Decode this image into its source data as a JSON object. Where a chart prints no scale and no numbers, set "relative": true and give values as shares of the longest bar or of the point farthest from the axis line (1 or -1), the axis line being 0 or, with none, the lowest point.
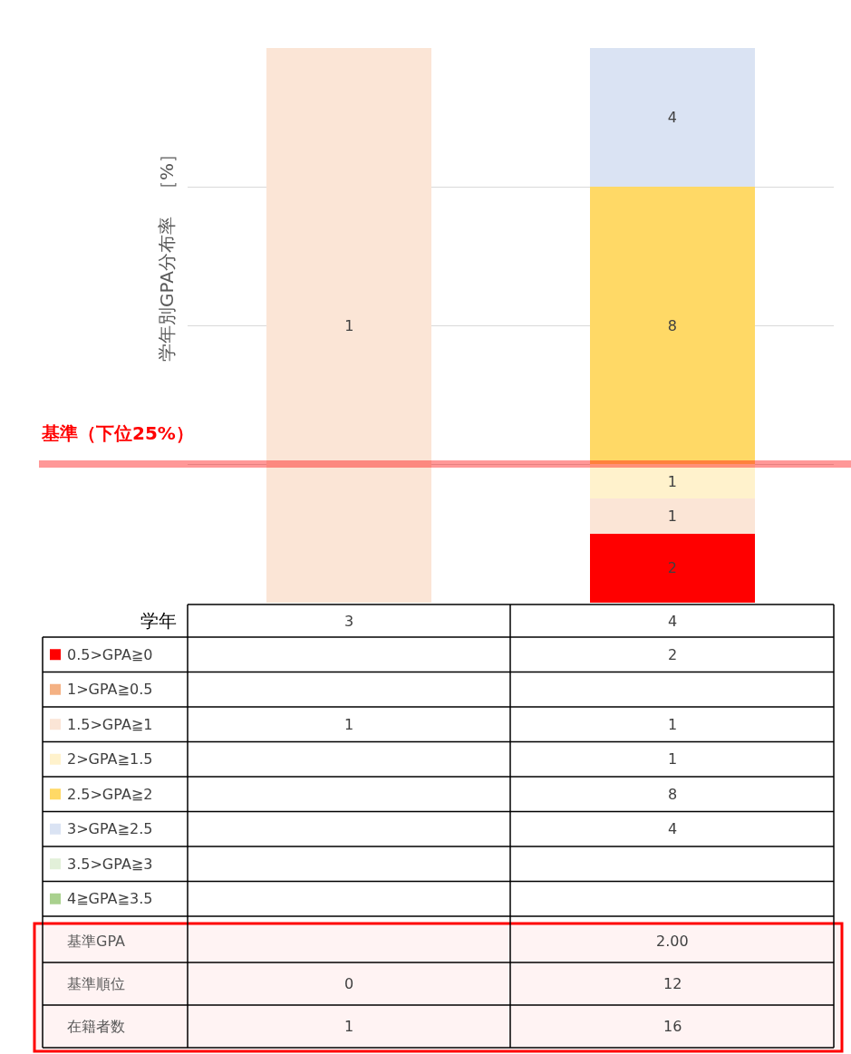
{
  "chart_data": {
    "type": "bar",
    "stacked": true,
    "relative": true,
    "grid": "y",
    "legend": "bottom",
    "xlabel": "学年",
    "ylabel": "学年別GPA分布率　［%］",
    "categories": [
      "3",
      "4"
    ],
    "series": [
      {
        "name": "0.5>GPA≧0",
        "color": "#ff0000",
        "values": [
          null,
          0.125
        ]
      },
      {
        "name": "1>GPA≧0.5",
        "color": "#f4b183",
        "values": [
          null,
          null
        ]
      },
      {
        "name": "1.5>GPA≧1",
        "color": "#fbe5d6",
        "values": [
          1,
          0.0625
        ]
      },
      {
        "name": "2>GPA≧1.5",
        "color": "#fff2cc",
        "values": [
          null,
          0.0625
        ]
      },
      {
        "name": "2.5>GPA≧2",
        "color": "#ffd966",
        "values": [
          null,
          0.5
        ]
      },
      {
        "name": "3>GPA≧2.5",
        "color": "#dae3f3",
        "values": [
          null,
          0.25
        ]
      },
      {
        "name": "3.5>GPA≧3",
        "color": "#e2f0d9",
        "values": [
          null,
          null
        ]
      },
      {
        "name": "4≧GPA≧3.5",
        "color": "#a9d18e",
        "values": [
          null,
          null
        ]
      }
    ],
    "ref_lines": [
      {
        "axis": "y",
        "value": 0.25,
        "label": "基準（下位25%）",
        "color": "#ff0000"
      }
    ],
    "annotations": [
      "2",
      "1",
      "1",
      "1",
      "8",
      "4",
      "基準GPA",
      "2.00",
      "基準順位",
      "0",
      "12",
      "在籍者数",
      "1",
      "16"
    ]
  }
}
